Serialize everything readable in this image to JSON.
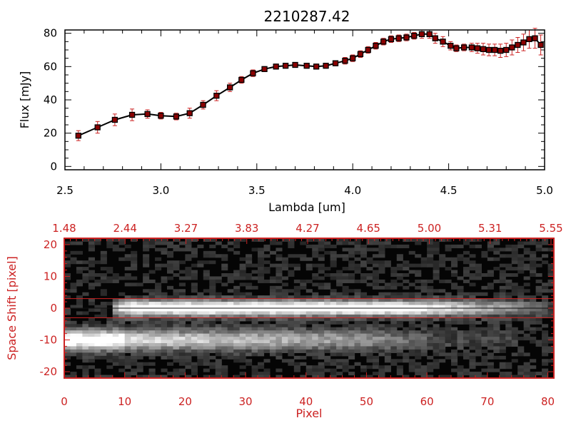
{
  "chart_data": [
    {
      "type": "line",
      "title": "2210287.42",
      "xlabel": "Lambda [um]",
      "ylabel": "Flux [mJy]",
      "xlim": [
        2.5,
        5.0
      ],
      "ylim": [
        -2,
        82
      ],
      "x_ticks": [
        "2.5",
        "3.0",
        "3.5",
        "4.0",
        "4.5",
        "5.0"
      ],
      "y_ticks": [
        "0",
        "20",
        "40",
        "60",
        "80"
      ],
      "grid": false,
      "colors": {
        "line": "#000000",
        "marker": "#8b0000",
        "errorbar": "#cc2222"
      },
      "series": [
        {
          "x": [
            2.57,
            2.67,
            2.76,
            2.85,
            2.93,
            3.0,
            3.08,
            3.15,
            3.22,
            3.29,
            3.36,
            3.42,
            3.48,
            3.54,
            3.6,
            3.65,
            3.7,
            3.76,
            3.81,
            3.86,
            3.91,
            3.96,
            4.0,
            4.04,
            4.08,
            4.12,
            4.16,
            4.2,
            4.24,
            4.28,
            4.32,
            4.36,
            4.4,
            4.43,
            4.47,
            4.51,
            4.54,
            4.58,
            4.62,
            4.65,
            4.68,
            4.71,
            4.74,
            4.77,
            4.8,
            4.83,
            4.86,
            4.89,
            4.92,
            4.95,
            4.98
          ],
          "y": [
            18.5,
            23.5,
            28,
            31,
            31.5,
            30.5,
            30,
            32,
            37,
            42.5,
            47.5,
            52,
            56,
            58.5,
            60,
            60.5,
            61,
            60.5,
            60,
            60.5,
            62,
            63.5,
            65,
            67.5,
            70,
            72.5,
            75,
            76.5,
            77,
            77.5,
            78.5,
            79.5,
            79.5,
            77,
            75,
            72.5,
            71,
            71.5,
            71.5,
            71,
            70.5,
            70,
            70,
            69.5,
            70,
            71.5,
            73,
            74.5,
            76.5,
            77,
            73
          ],
          "err": [
            3,
            3.5,
            3.5,
            3.5,
            2.5,
            2,
            2,
            3,
            2.5,
            3,
            2.5,
            2,
            2,
            1.5,
            1.5,
            1.5,
            1.5,
            1.5,
            1.5,
            1.5,
            1.5,
            2,
            2,
            2,
            2,
            2,
            2,
            2,
            2,
            2,
            2,
            2.5,
            2.5,
            3,
            3,
            2.5,
            2,
            2,
            2.5,
            3,
            3.5,
            3.5,
            3.5,
            4,
            4,
            4.5,
            4.5,
            5,
            5.5,
            6,
            6
          ]
        }
      ]
    },
    {
      "type": "heatmap",
      "xlabel": "Pixel",
      "ylabel": "Space Shift [pixel]",
      "xlim": [
        0,
        81
      ],
      "ylim": [
        -22,
        22
      ],
      "x_ticks": [
        "0",
        "10",
        "20",
        "30",
        "40",
        "50",
        "60",
        "70",
        "80"
      ],
      "y_ticks": [
        "-20",
        "-10",
        "0",
        "10",
        "20"
      ],
      "top_axis_label": "",
      "top_ticks": [
        "1.48",
        "2.44",
        "3.27",
        "3.83",
        "4.27",
        "4.65",
        "5.00",
        "5.31",
        "5.55"
      ],
      "colormap": "grayscale",
      "axis_color": "#cc2222",
      "extraction_aperture": [
        -3,
        3
      ],
      "trace_center": 0,
      "features": [
        {
          "description": "spectral trace",
          "space_shift": 0,
          "pixel_range": [
            9,
            78
          ],
          "peak_pixel": 30
        },
        {
          "description": "second source trace",
          "space_shift": -10,
          "pixel_range": [
            0,
            75
          ],
          "peak_pixel": 2
        }
      ]
    }
  ]
}
